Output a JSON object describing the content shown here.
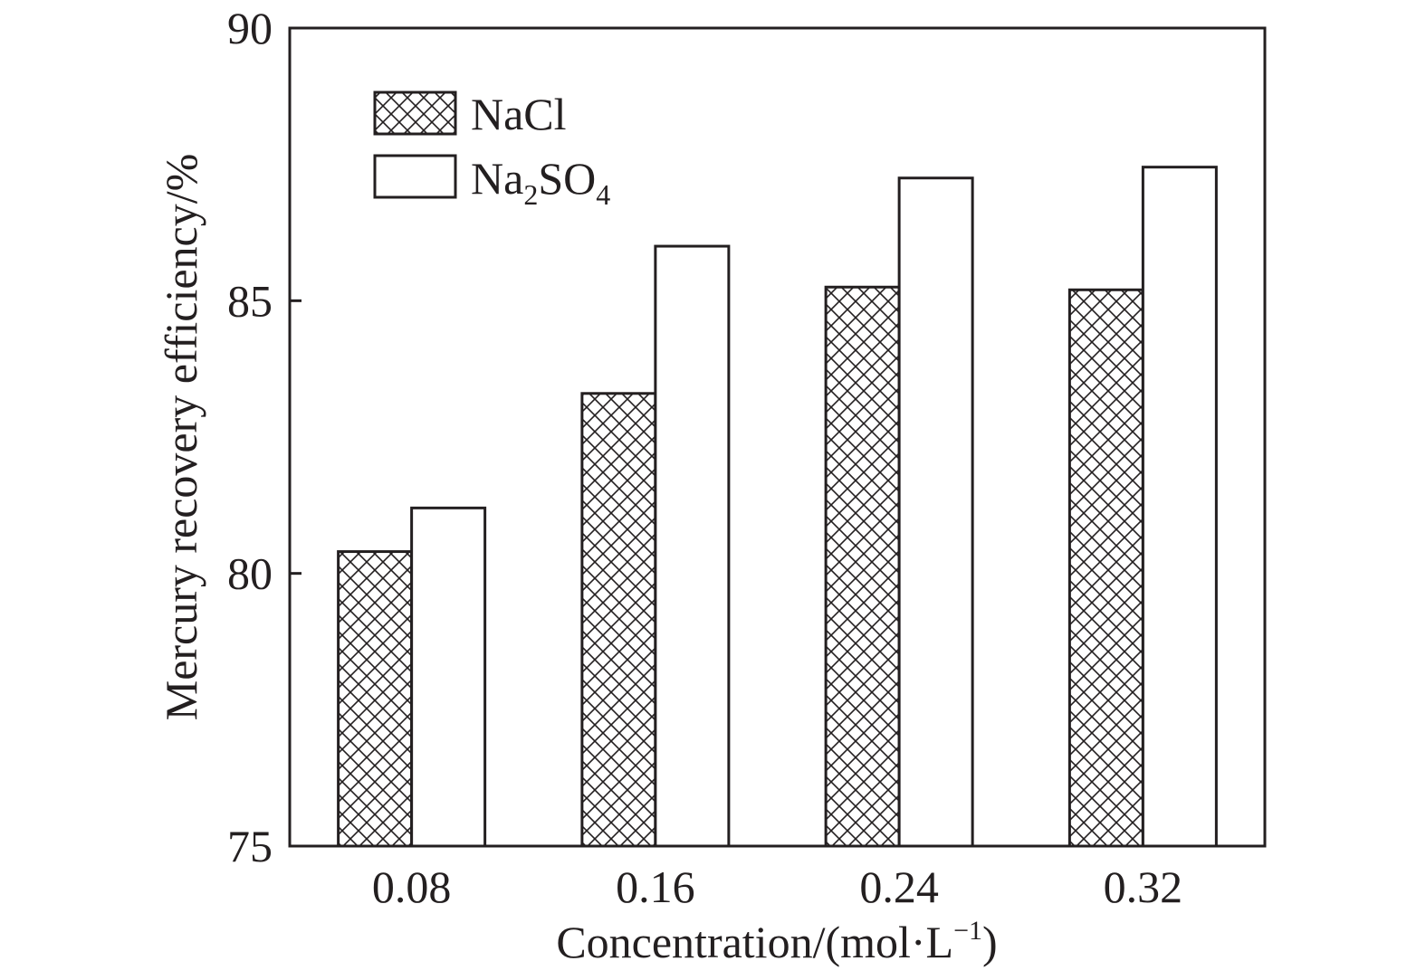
{
  "chart_data": {
    "type": "bar",
    "categories": [
      "0.08",
      "0.16",
      "0.24",
      "0.32"
    ],
    "series": [
      {
        "name": "NaCl",
        "values": [
          80.4,
          83.3,
          85.25,
          85.2
        ]
      },
      {
        "name": "Na2SO4",
        "values": [
          81.2,
          86.0,
          87.25,
          87.45
        ]
      }
    ],
    "legend": [
      {
        "base": "NaCl",
        "sub1": "",
        "mid": "",
        "sub2": ""
      },
      {
        "base": "Na",
        "sub1": "2",
        "mid": "SO",
        "sub2": "4"
      }
    ],
    "xlabel": {
      "text": "Concentration/(mol·L",
      "sup": "−1",
      "close": ")"
    },
    "ylabel": "Mercury recovery efficiency/%",
    "ylim": [
      75,
      90
    ],
    "yticks": [
      "75",
      "80",
      "85",
      "90"
    ],
    "legend_position": "top-left",
    "grid": false,
    "colors": {
      "axis": "#231f20",
      "bar_fill": "#ffffff",
      "hatch": "#231f20"
    }
  }
}
